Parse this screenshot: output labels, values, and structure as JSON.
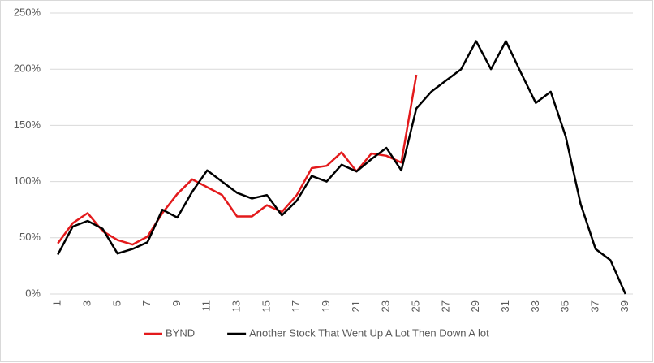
{
  "chart_data": {
    "type": "line",
    "categories": [
      "1",
      null,
      "3",
      null,
      "5",
      null,
      "7",
      null,
      "9",
      null,
      "11",
      null,
      "13",
      null,
      "15",
      null,
      "17",
      null,
      "19",
      null,
      "21",
      null,
      "23",
      null,
      "25",
      null,
      "27",
      null,
      "29",
      null,
      "31",
      null,
      "33",
      null,
      "35",
      null,
      "37",
      null,
      "39"
    ],
    "series": [
      {
        "name": "BYND",
        "color": "#e31a1c",
        "values": [
          45,
          63,
          72,
          56,
          48,
          44,
          51,
          72,
          89,
          102,
          95,
          88,
          69,
          69,
          79,
          73,
          88,
          112,
          114,
          126,
          109,
          125,
          123,
          117,
          195,
          null,
          null,
          null,
          null,
          null,
          null,
          null,
          null,
          null,
          null,
          null,
          null,
          null,
          null
        ]
      },
      {
        "name": "Another Stock That Went Up A Lot Then Down A lot",
        "color": "#000000",
        "values": [
          35,
          60,
          65,
          58,
          36,
          40,
          46,
          75,
          68,
          91,
          110,
          100,
          90,
          85,
          88,
          70,
          83,
          105,
          100,
          115,
          109,
          120,
          130,
          110,
          165,
          180,
          190,
          200,
          225,
          200,
          225,
          197,
          170,
          180,
          140,
          80,
          40,
          30,
          0
        ]
      }
    ],
    "ylim": [
      0,
      250
    ],
    "yticks": [
      {
        "value": 0,
        "label": "0%"
      },
      {
        "value": 50,
        "label": "50%"
      },
      {
        "value": 100,
        "label": "100%"
      },
      {
        "value": 150,
        "label": "150%"
      },
      {
        "value": 200,
        "label": "200%"
      },
      {
        "value": 250,
        "label": "250%"
      }
    ],
    "grid": true,
    "legend": "bottom"
  }
}
